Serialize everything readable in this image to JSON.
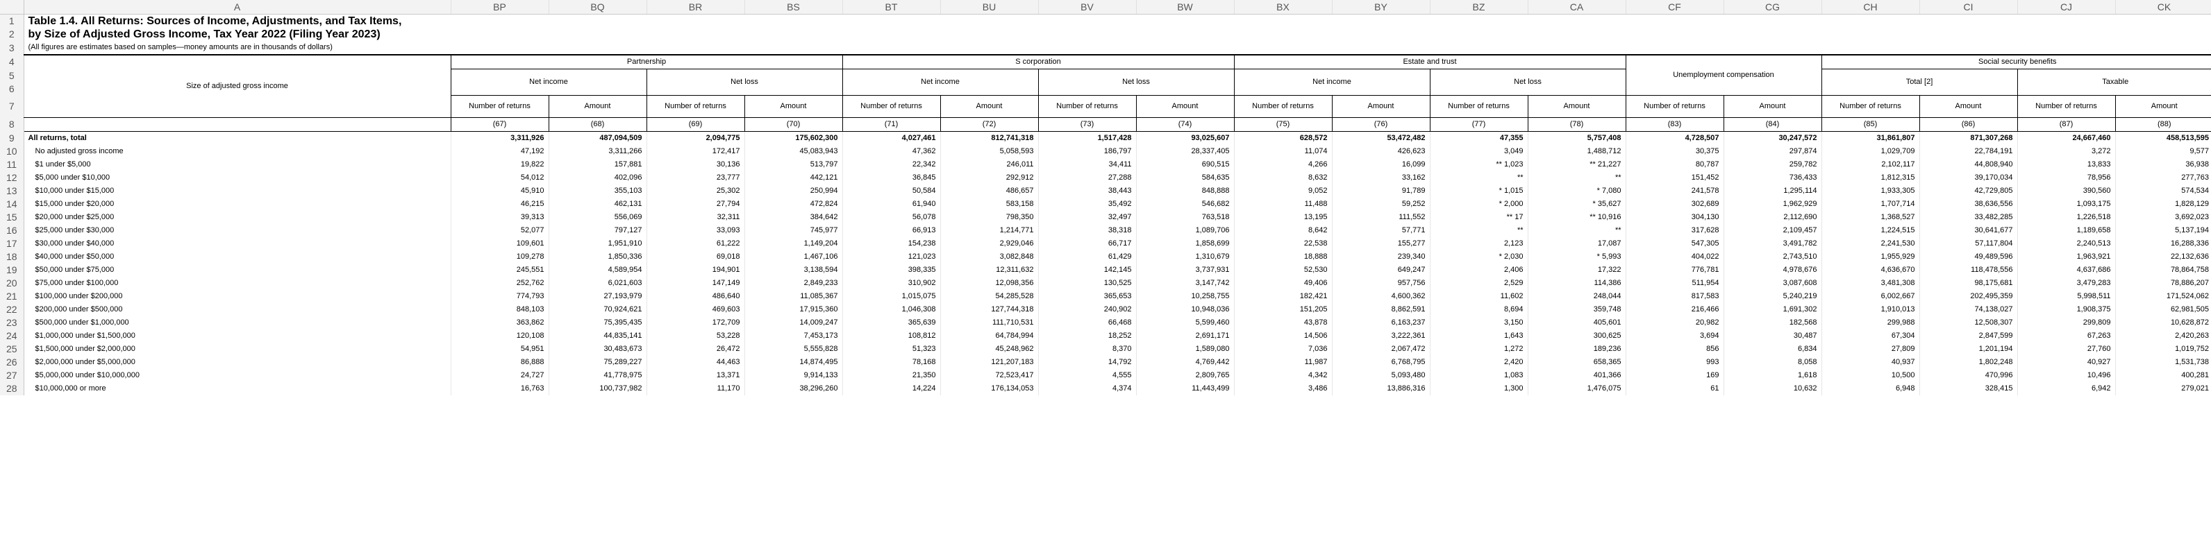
{
  "columns": [
    "A",
    "BP",
    "BQ",
    "BR",
    "BS",
    "BT",
    "BU",
    "BV",
    "BW",
    "BX",
    "BY",
    "BZ",
    "CA",
    "CF",
    "CG",
    "CH",
    "CI",
    "CJ",
    "CK"
  ],
  "title_line1": "Table 1.4.  All Returns: Sources of Income, Adjustments, and Tax Items,",
  "title_line2": "by Size of Adjusted Gross Income, Tax Year 2022 (Filing Year 2023)",
  "subtitle": "(All figures are estimates based on samples—money amounts are in thousands of dollars)",
  "stub_label": "Size of adjusted gross income",
  "groups": {
    "partnership": "Partnership",
    "s_corp": "S corporation",
    "estate": "Estate and trust",
    "unemployment": "Unemployment compensation",
    "social_security": "Social security benefits"
  },
  "subgroups": {
    "net_income": "Net income",
    "net_loss": "Net loss",
    "total": "Total [2]",
    "taxable": "Taxable"
  },
  "labels": {
    "returns": "Number of returns",
    "amount": "Amount"
  },
  "col_numbers": [
    "(67)",
    "(68)",
    "(69)",
    "(70)",
    "(71)",
    "(72)",
    "(73)",
    "(74)",
    "(75)",
    "(76)",
    "(77)",
    "(78)",
    "(83)",
    "(84)",
    "(85)",
    "(86)",
    "(87)",
    "(88)"
  ],
  "rows": [
    {
      "label": "All returns, total",
      "bold": true,
      "values": [
        "3,311,926",
        "487,094,509",
        "2,094,775",
        "175,602,300",
        "4,027,461",
        "812,741,318",
        "1,517,428",
        "93,025,607",
        "628,572",
        "53,472,482",
        "47,355",
        "5,757,408",
        "4,728,507",
        "30,247,572",
        "31,861,807",
        "871,307,268",
        "24,667,460",
        "458,513,595"
      ]
    },
    {
      "label": "No adjusted gross income",
      "values": [
        "47,192",
        "3,311,266",
        "172,417",
        "45,083,943",
        "47,362",
        "5,058,593",
        "186,797",
        "28,337,405",
        "11,074",
        "426,623",
        "3,049",
        "1,488,712",
        "30,375",
        "297,874",
        "1,029,709",
        "22,784,191",
        "3,272",
        "9,577"
      ]
    },
    {
      "label": "$1 under $5,000",
      "values": [
        "19,822",
        "157,881",
        "30,136",
        "513,797",
        "22,342",
        "246,011",
        "34,411",
        "690,515",
        "4,266",
        "16,099",
        "** 1,023",
        "** 21,227",
        "80,787",
        "259,782",
        "2,102,117",
        "44,808,940",
        "13,833",
        "36,938"
      ]
    },
    {
      "label": "$5,000 under $10,000",
      "values": [
        "54,012",
        "402,096",
        "23,777",
        "442,121",
        "36,845",
        "292,912",
        "27,288",
        "584,635",
        "8,632",
        "33,162",
        "**",
        "**",
        "151,452",
        "736,433",
        "1,812,315",
        "39,170,034",
        "78,956",
        "277,763"
      ]
    },
    {
      "label": "$10,000 under $15,000",
      "values": [
        "45,910",
        "355,103",
        "25,302",
        "250,994",
        "50,584",
        "486,657",
        "38,443",
        "848,888",
        "9,052",
        "91,789",
        "* 1,015",
        "* 7,080",
        "241,578",
        "1,295,114",
        "1,933,305",
        "42,729,805",
        "390,560",
        "574,534"
      ]
    },
    {
      "label": "$15,000 under $20,000",
      "values": [
        "46,215",
        "462,131",
        "27,794",
        "472,824",
        "61,940",
        "583,158",
        "35,492",
        "546,682",
        "11,488",
        "59,252",
        "* 2,000",
        "* 35,627",
        "302,689",
        "1,962,929",
        "1,707,714",
        "38,636,556",
        "1,093,175",
        "1,828,129"
      ]
    },
    {
      "label": "$20,000 under $25,000",
      "values": [
        "39,313",
        "556,069",
        "32,311",
        "384,642",
        "56,078",
        "798,350",
        "32,497",
        "763,518",
        "13,195",
        "111,552",
        "** 17",
        "** 10,916",
        "304,130",
        "2,112,690",
        "1,368,527",
        "33,482,285",
        "1,226,518",
        "3,692,023"
      ]
    },
    {
      "label": "$25,000 under $30,000",
      "values": [
        "52,077",
        "797,127",
        "33,093",
        "745,977",
        "66,913",
        "1,214,771",
        "38,318",
        "1,089,706",
        "8,642",
        "57,771",
        "**",
        "**",
        "317,628",
        "2,109,457",
        "1,224,515",
        "30,641,677",
        "1,189,658",
        "5,137,194"
      ]
    },
    {
      "label": "$30,000 under $40,000",
      "values": [
        "109,601",
        "1,951,910",
        "61,222",
        "1,149,204",
        "154,238",
        "2,929,046",
        "66,717",
        "1,858,699",
        "22,538",
        "155,277",
        "2,123",
        "17,087",
        "547,305",
        "3,491,782",
        "2,241,530",
        "57,117,804",
        "2,240,513",
        "16,288,336"
      ]
    },
    {
      "label": "$40,000 under $50,000",
      "values": [
        "109,278",
        "1,850,336",
        "69,018",
        "1,467,106",
        "121,023",
        "3,082,848",
        "61,429",
        "1,310,679",
        "18,888",
        "239,340",
        "* 2,030",
        "* 5,993",
        "404,022",
        "2,743,510",
        "1,955,929",
        "49,489,596",
        "1,963,921",
        "22,132,636"
      ]
    },
    {
      "label": "$50,000 under $75,000",
      "values": [
        "245,551",
        "4,589,954",
        "194,901",
        "3,138,594",
        "398,335",
        "12,311,632",
        "142,145",
        "3,737,931",
        "52,530",
        "649,247",
        "2,406",
        "17,322",
        "776,781",
        "4,978,676",
        "4,636,670",
        "118,478,556",
        "4,637,686",
        "78,864,758"
      ]
    },
    {
      "label": "$75,000 under $100,000",
      "values": [
        "252,762",
        "6,021,603",
        "147,149",
        "2,849,233",
        "310,902",
        "12,098,356",
        "130,525",
        "3,147,742",
        "49,406",
        "957,756",
        "2,529",
        "114,386",
        "511,954",
        "3,087,608",
        "3,481,308",
        "98,175,681",
        "3,479,283",
        "78,886,207"
      ]
    },
    {
      "label": "$100,000 under $200,000",
      "values": [
        "774,793",
        "27,193,979",
        "486,640",
        "11,085,367",
        "1,015,075",
        "54,285,528",
        "365,653",
        "10,258,755",
        "182,421",
        "4,600,362",
        "11,602",
        "248,044",
        "817,583",
        "5,240,219",
        "6,002,667",
        "202,495,359",
        "5,998,511",
        "171,524,062"
      ]
    },
    {
      "label": "$200,000 under $500,000",
      "values": [
        "848,103",
        "70,924,621",
        "469,603",
        "17,915,360",
        "1,046,308",
        "127,744,318",
        "240,902",
        "10,948,036",
        "151,205",
        "8,862,591",
        "8,694",
        "359,748",
        "216,466",
        "1,691,302",
        "1,910,013",
        "74,138,027",
        "1,908,375",
        "62,981,505"
      ]
    },
    {
      "label": "$500,000 under $1,000,000",
      "values": [
        "363,862",
        "75,395,435",
        "172,709",
        "14,009,247",
        "365,639",
        "111,710,531",
        "66,468",
        "5,599,460",
        "43,878",
        "6,163,237",
        "3,150",
        "405,601",
        "20,982",
        "182,568",
        "299,988",
        "12,508,307",
        "299,809",
        "10,628,872"
      ]
    },
    {
      "label": "$1,000,000 under $1,500,000",
      "values": [
        "120,108",
        "44,835,141",
        "53,228",
        "7,453,173",
        "108,812",
        "64,784,994",
        "18,252",
        "2,691,171",
        "14,506",
        "3,222,361",
        "1,643",
        "300,625",
        "3,694",
        "30,487",
        "67,304",
        "2,847,599",
        "67,263",
        "2,420,263"
      ]
    },
    {
      "label": "$1,500,000 under $2,000,000",
      "values": [
        "54,951",
        "30,483,673",
        "26,472",
        "5,555,828",
        "51,323",
        "45,248,962",
        "8,370",
        "1,589,080",
        "7,036",
        "2,067,472",
        "1,272",
        "189,236",
        "856",
        "6,834",
        "27,809",
        "1,201,194",
        "27,760",
        "1,019,752"
      ]
    },
    {
      "label": "$2,000,000 under $5,000,000",
      "values": [
        "86,888",
        "75,289,227",
        "44,463",
        "14,874,495",
        "78,168",
        "121,207,183",
        "14,792",
        "4,769,442",
        "11,987",
        "6,768,795",
        "2,420",
        "658,365",
        "993",
        "8,058",
        "40,937",
        "1,802,248",
        "40,927",
        "1,531,738"
      ]
    },
    {
      "label": "$5,000,000 under $10,000,000",
      "values": [
        "24,727",
        "41,778,975",
        "13,371",
        "9,914,133",
        "21,350",
        "72,523,417",
        "4,555",
        "2,809,765",
        "4,342",
        "5,093,480",
        "1,083",
        "401,366",
        "169",
        "1,618",
        "10,500",
        "470,996",
        "10,496",
        "400,281"
      ]
    },
    {
      "label": "$10,000,000 or more",
      "values": [
        "16,763",
        "100,737,982",
        "11,170",
        "38,296,260",
        "14,224",
        "176,134,053",
        "4,374",
        "11,443,499",
        "3,486",
        "13,886,316",
        "1,300",
        "1,476,075",
        "61",
        "10,632",
        "6,948",
        "328,415",
        "6,942",
        "279,021"
      ]
    }
  ]
}
